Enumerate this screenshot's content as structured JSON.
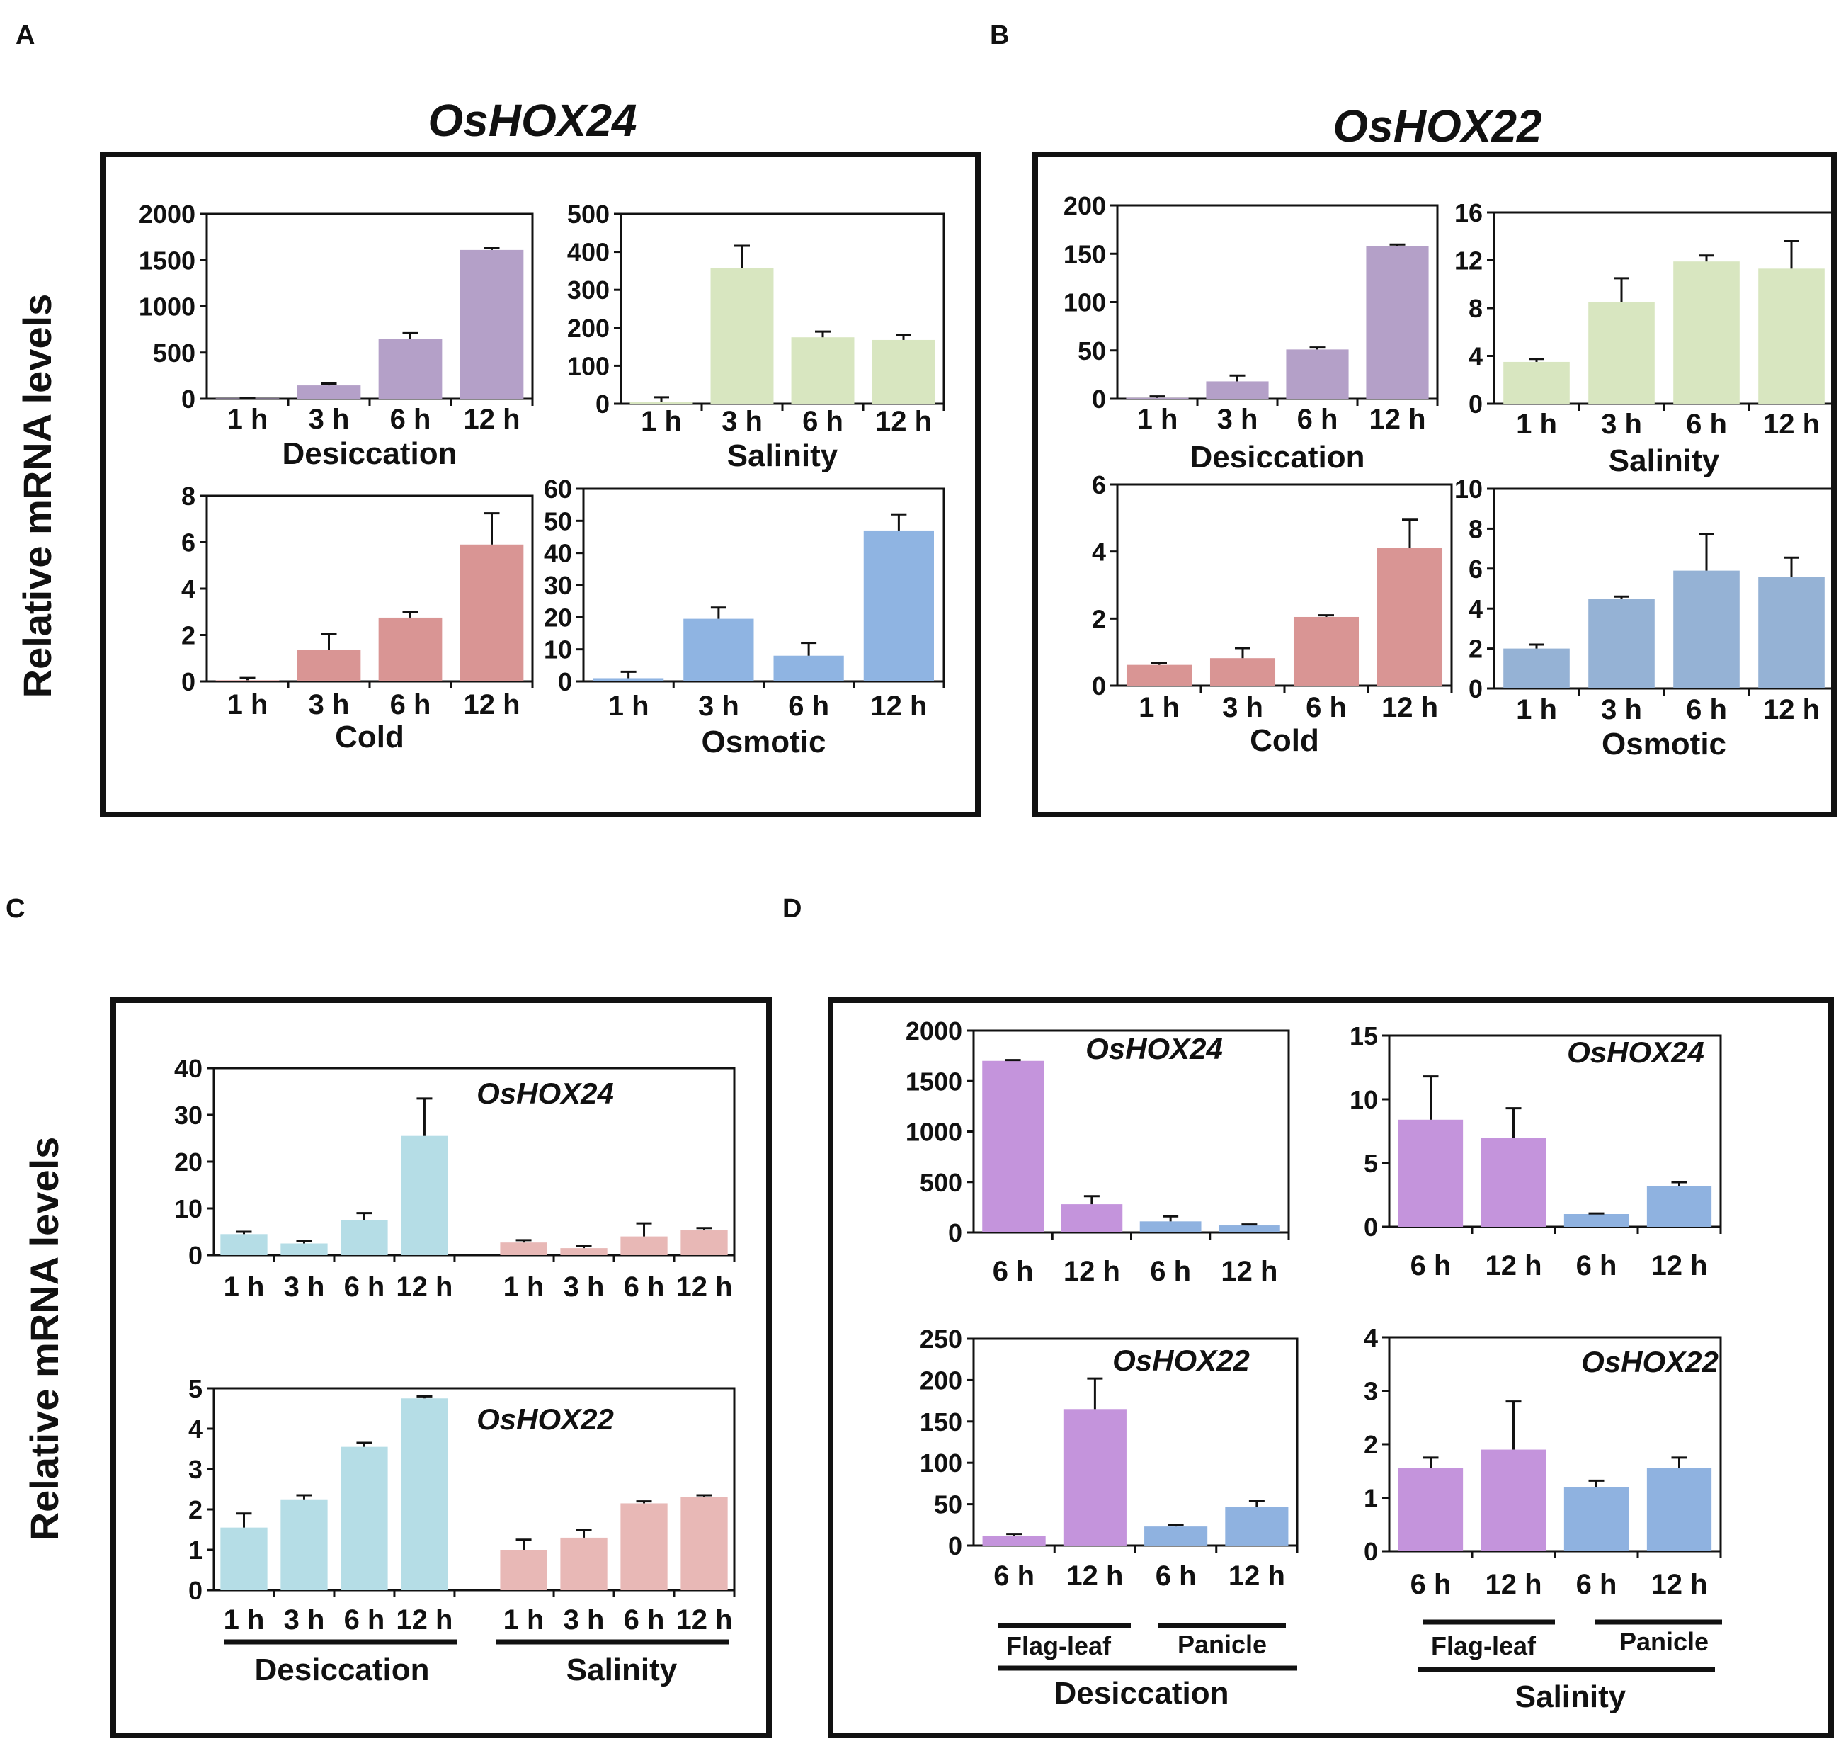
{
  "labels": {
    "panel_a": "A",
    "panel_b": "B",
    "panel_c": "C",
    "panel_d": "D",
    "ylabel": "Relative mRNA levels",
    "gene_a": "OsHOX24",
    "gene_b": "OsHOX22"
  },
  "colors": {
    "desiccation": "#b4a0c8",
    "salinity": "#d8e6c0",
    "cold": "#d99594",
    "osmotic_a": "#8fb4e2",
    "osmotic_b": "#95b2d5",
    "c_desiccation": "#b5dde6",
    "c_salinity": "#e8b8b6",
    "d_flagleaf": "#c494dc",
    "d_panicle": "#8fb2e0"
  },
  "chart_data": [
    {
      "id": "A1",
      "type": "bar",
      "panel": "A",
      "categories": [
        "1 h",
        "3 h",
        "6 h",
        "12 h"
      ],
      "values": [
        5,
        145,
        650,
        1610
      ],
      "errors": [
        3,
        20,
        60,
        18
      ],
      "ylim": [
        0,
        2000
      ],
      "yticks": [
        "0",
        "500",
        "1000",
        "1500",
        "2000"
      ],
      "xlabel": "Desiccation",
      "colorKey": "desiccation"
    },
    {
      "id": "A2",
      "type": "bar",
      "panel": "A",
      "categories": [
        "1 h",
        "3 h",
        "6 h",
        "12 h"
      ],
      "values": [
        5,
        358,
        175,
        168
      ],
      "errors": [
        12,
        58,
        15,
        13
      ],
      "ylim": [
        0,
        500
      ],
      "yticks": [
        "0",
        "100",
        "200",
        "300",
        "400",
        "500"
      ],
      "xlabel": "Salinity",
      "colorKey": "salinity"
    },
    {
      "id": "A3",
      "type": "bar",
      "panel": "A",
      "categories": [
        "1 h",
        "3 h",
        "6 h",
        "12 h"
      ],
      "values": [
        0.05,
        1.35,
        2.75,
        5.9
      ],
      "errors": [
        0.1,
        0.7,
        0.25,
        1.35
      ],
      "ylim": [
        0,
        8
      ],
      "yticks": [
        "0",
        "2",
        "4",
        "6",
        "8"
      ],
      "xlabel": "Cold",
      "colorKey": "cold"
    },
    {
      "id": "A4",
      "type": "bar",
      "panel": "A",
      "categories": [
        "1 h",
        "3 h",
        "6 h",
        "12 h"
      ],
      "values": [
        1,
        19.5,
        8,
        47
      ],
      "errors": [
        2,
        3.5,
        4,
        5
      ],
      "ylim": [
        0,
        60
      ],
      "yticks": [
        "0",
        "10",
        "20",
        "30",
        "40",
        "50",
        "60"
      ],
      "xlabel": "Osmotic",
      "colorKey": "osmotic_a"
    },
    {
      "id": "B1",
      "type": "bar",
      "panel": "B",
      "categories": [
        "1 h",
        "3 h",
        "6 h",
        "12 h"
      ],
      "values": [
        1,
        18,
        51,
        158
      ],
      "errors": [
        1.5,
        6,
        2,
        1.5
      ],
      "ylim": [
        0,
        200
      ],
      "yticks": [
        "0",
        "50",
        "100",
        "150",
        "200"
      ],
      "xlabel": "Desiccation",
      "colorKey": "desiccation"
    },
    {
      "id": "B2",
      "type": "bar",
      "panel": "B",
      "categories": [
        "1 h",
        "3 h",
        "6 h",
        "12 h"
      ],
      "values": [
        3.5,
        8.5,
        11.9,
        11.3
      ],
      "errors": [
        0.25,
        2,
        0.5,
        2.3
      ],
      "ylim": [
        0,
        16
      ],
      "yticks": [
        "0",
        "4",
        "8",
        "12",
        "16"
      ],
      "xlabel": "Salinity",
      "colorKey": "salinity"
    },
    {
      "id": "B3",
      "type": "bar",
      "panel": "B",
      "categories": [
        "1 h",
        "3 h",
        "6 h",
        "12 h"
      ],
      "values": [
        0.62,
        0.82,
        2.05,
        4.1
      ],
      "errors": [
        0.06,
        0.3,
        0.05,
        0.85
      ],
      "ylim": [
        0,
        6
      ],
      "yticks": [
        "0",
        "2",
        "4",
        "6"
      ],
      "xlabel": "Cold",
      "colorKey": "cold"
    },
    {
      "id": "B4",
      "type": "bar",
      "panel": "B",
      "categories": [
        "1 h",
        "3 h",
        "6 h",
        "12 h"
      ],
      "values": [
        2,
        4.5,
        5.9,
        5.6
      ],
      "errors": [
        0.2,
        0.1,
        1.85,
        0.95
      ],
      "ylim": [
        0,
        10
      ],
      "yticks": [
        "0",
        "2",
        "4",
        "6",
        "8",
        "10"
      ],
      "xlabel": "Osmotic",
      "colorKey": "osmotic_b"
    },
    {
      "id": "C1",
      "type": "bar",
      "panel": "C",
      "title": "OsHOX24",
      "categories": [
        "1 h",
        "3 h",
        "6 h",
        "12 h",
        "1 h",
        "3 h",
        "6 h",
        "12 h"
      ],
      "values": [
        4.5,
        2.5,
        7.5,
        25.5,
        2.7,
        1.5,
        4,
        5.3
      ],
      "errors": [
        0.5,
        0.5,
        1.5,
        8,
        0.5,
        0.5,
        2.8,
        0.5
      ],
      "ylim": [
        0,
        40
      ],
      "yticks": [
        "0",
        "10",
        "20",
        "30",
        "40"
      ],
      "colorKeys": [
        "c_desiccation",
        "c_desiccation",
        "c_desiccation",
        "c_desiccation",
        "c_salinity",
        "c_salinity",
        "c_salinity",
        "c_salinity"
      ]
    },
    {
      "id": "C2",
      "type": "bar",
      "panel": "C",
      "title": "OsHOX22",
      "categories": [
        "1 h",
        "3 h",
        "6 h",
        "12 h",
        "1 h",
        "3 h",
        "6 h",
        "12 h"
      ],
      "values": [
        1.55,
        2.25,
        3.55,
        4.75,
        1.0,
        1.3,
        2.15,
        2.3
      ],
      "errors": [
        0.35,
        0.1,
        0.1,
        0.05,
        0.25,
        0.2,
        0.05,
        0.05
      ],
      "ylim": [
        0,
        5
      ],
      "yticks": [
        "0",
        "1",
        "2",
        "3",
        "4",
        "5"
      ],
      "groups": [
        "Desiccation",
        "Salinity"
      ],
      "colorKeys": [
        "c_desiccation",
        "c_desiccation",
        "c_desiccation",
        "c_desiccation",
        "c_salinity",
        "c_salinity",
        "c_salinity",
        "c_salinity"
      ]
    },
    {
      "id": "D1",
      "type": "bar",
      "panel": "D",
      "title": "OsHOX24",
      "categories": [
        "6 h",
        "12 h",
        "6 h",
        "12 h"
      ],
      "values": [
        1700,
        280,
        110,
        70
      ],
      "errors": [
        8,
        80,
        50,
        10
      ],
      "ylim": [
        0,
        2000
      ],
      "yticks": [
        "0",
        "500",
        "1000",
        "1500",
        "2000"
      ],
      "colorKeys": [
        "d_flagleaf",
        "d_flagleaf",
        "d_panicle",
        "d_panicle"
      ]
    },
    {
      "id": "D2",
      "type": "bar",
      "panel": "D",
      "title": "OsHOX24",
      "categories": [
        "6 h",
        "12 h",
        "6 h",
        "12 h"
      ],
      "values": [
        8.4,
        7,
        1,
        3.2
      ],
      "errors": [
        3.4,
        2.3,
        0.05,
        0.3
      ],
      "ylim": [
        0,
        15
      ],
      "yticks": [
        "0",
        "5",
        "10",
        "15"
      ],
      "colorKeys": [
        "d_flagleaf",
        "d_flagleaf",
        "d_panicle",
        "d_panicle"
      ]
    },
    {
      "id": "D3",
      "type": "bar",
      "panel": "D",
      "title": "OsHOX22",
      "categories": [
        "6 h",
        "12 h",
        "6 h",
        "12 h"
      ],
      "values": [
        12,
        165,
        23,
        47
      ],
      "errors": [
        2,
        37,
        2,
        7
      ],
      "ylim": [
        0,
        250
      ],
      "yticks": [
        "0",
        "50",
        "100",
        "150",
        "200",
        "250"
      ],
      "groups": [
        "Flag-leaf",
        "Panicle"
      ],
      "stress": "Desiccation",
      "colorKeys": [
        "d_flagleaf",
        "d_flagleaf",
        "d_panicle",
        "d_panicle"
      ]
    },
    {
      "id": "D4",
      "type": "bar",
      "panel": "D",
      "title": "OsHOX22",
      "categories": [
        "6 h",
        "12 h",
        "6 h",
        "12 h"
      ],
      "values": [
        1.55,
        1.9,
        1.2,
        1.55
      ],
      "errors": [
        0.2,
        0.9,
        0.12,
        0.2
      ],
      "ylim": [
        0,
        4
      ],
      "yticks": [
        "0",
        "1",
        "2",
        "3",
        "4"
      ],
      "groups": [
        "Flag-leaf",
        "Panicle"
      ],
      "stress": "Salinity",
      "colorKeys": [
        "d_flagleaf",
        "d_flagleaf",
        "d_panicle",
        "d_panicle"
      ]
    }
  ]
}
